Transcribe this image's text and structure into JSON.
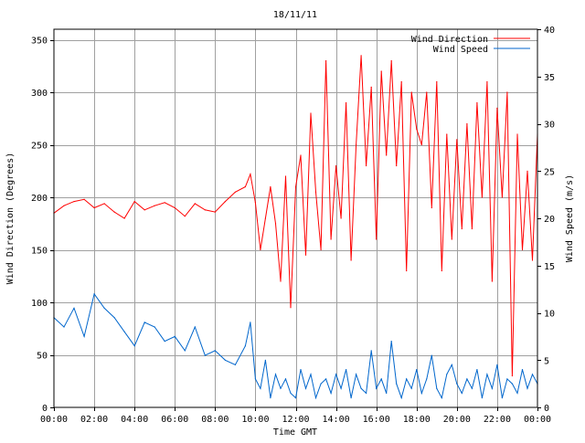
{
  "chart_data": {
    "type": "line",
    "title": "18/11/11",
    "xlabel": "Time GMT",
    "ylabel": "Wind Direction (Degrees)",
    "ylabel_right": "Wind Speed (m/s)",
    "grid": true,
    "legend_position": "top-right",
    "x_unit": "hours",
    "xlim": [
      0,
      24
    ],
    "ylim": [
      0,
      360
    ],
    "ylim_right": [
      0,
      40
    ],
    "x_ticks": [
      0,
      2,
      4,
      6,
      8,
      10,
      12,
      14,
      16,
      18,
      20,
      22,
      24
    ],
    "x_tick_labels": [
      "00:00",
      "02:00",
      "04:00",
      "06:00",
      "08:00",
      "10:00",
      "12:00",
      "14:00",
      "16:00",
      "18:00",
      "20:00",
      "22:00",
      "00:00"
    ],
    "y_ticks": [
      0,
      50,
      100,
      150,
      200,
      250,
      300,
      350
    ],
    "y_tick_labels": [
      "0",
      "50",
      "100",
      "150",
      "200",
      "250",
      "300",
      "350"
    ],
    "y_ticks_right": [
      0,
      5,
      10,
      15,
      20,
      25,
      30,
      35,
      40
    ],
    "y_tick_labels_right": [
      "0",
      "5",
      "10",
      "15",
      "20",
      "25",
      "30",
      "35",
      "40"
    ],
    "series": [
      {
        "name": "Wind Direction",
        "axis": "left",
        "color": "#ff0000",
        "x": [
          0,
          0.5,
          1,
          1.5,
          2,
          2.5,
          3,
          3.5,
          4,
          4.5,
          5,
          5.5,
          6,
          6.5,
          7,
          7.5,
          8,
          8.5,
          9,
          9.5,
          9.75,
          10,
          10.25,
          10.5,
          10.75,
          11,
          11.25,
          11.5,
          11.75,
          12,
          12.25,
          12.5,
          12.75,
          13,
          13.25,
          13.5,
          13.75,
          14,
          14.25,
          14.5,
          14.75,
          15,
          15.25,
          15.5,
          15.75,
          16,
          16.25,
          16.5,
          16.75,
          17,
          17.25,
          17.5,
          17.75,
          18,
          18.25,
          18.5,
          18.75,
          19,
          19.25,
          19.5,
          19.75,
          20,
          20.25,
          20.5,
          20.75,
          21,
          21.25,
          21.5,
          21.75,
          22,
          22.25,
          22.5,
          22.75,
          23,
          23.25,
          23.5,
          23.75,
          24
        ],
        "values": [
          185,
          192,
          196,
          198,
          190,
          194,
          186,
          180,
          196,
          188,
          192,
          195,
          190,
          182,
          194,
          188,
          186,
          196,
          205,
          210,
          222,
          195,
          150,
          180,
          210,
          175,
          120,
          220,
          95,
          210,
          240,
          145,
          280,
          205,
          150,
          330,
          160,
          230,
          180,
          290,
          140,
          250,
          335,
          230,
          305,
          160,
          320,
          240,
          330,
          230,
          310,
          130,
          300,
          265,
          250,
          300,
          190,
          310,
          130,
          260,
          160,
          255,
          170,
          270,
          170,
          290,
          200,
          310,
          120,
          285,
          200,
          300,
          30,
          260,
          150,
          225,
          140,
          260
        ]
      },
      {
        "name": "Wind Speed",
        "axis": "right",
        "color": "#0066cc",
        "x": [
          0,
          0.5,
          1,
          1.5,
          2,
          2.5,
          3,
          3.5,
          4,
          4.5,
          5,
          5.5,
          6,
          6.5,
          7,
          7.5,
          8,
          8.5,
          9,
          9.5,
          9.75,
          10,
          10.25,
          10.5,
          10.75,
          11,
          11.25,
          11.5,
          11.75,
          12,
          12.25,
          12.5,
          12.75,
          13,
          13.25,
          13.5,
          13.75,
          14,
          14.25,
          14.5,
          14.75,
          15,
          15.25,
          15.5,
          15.75,
          16,
          16.25,
          16.5,
          16.75,
          17,
          17.25,
          17.5,
          17.75,
          18,
          18.25,
          18.5,
          18.75,
          19,
          19.25,
          19.5,
          19.75,
          20,
          20.25,
          20.5,
          20.75,
          21,
          21.25,
          21.5,
          21.75,
          22,
          22.25,
          22.5,
          22.75,
          23,
          23.25,
          23.5,
          23.75,
          24
        ],
        "values": [
          9.5,
          8.5,
          10.5,
          7.5,
          12,
          10.5,
          9.5,
          8,
          6.5,
          9,
          8.5,
          7,
          7.5,
          6,
          8.5,
          5.5,
          6,
          5,
          4.5,
          6.5,
          9,
          3,
          2,
          5,
          1,
          3.5,
          2,
          3,
          1.5,
          1,
          4,
          2,
          3.5,
          1,
          2.5,
          3,
          1.5,
          3.5,
          2,
          4,
          1,
          3.5,
          2,
          1.5,
          6,
          2,
          3,
          1.5,
          7,
          2.5,
          1,
          3,
          2,
          4,
          1.5,
          3,
          5.5,
          2,
          1,
          3.5,
          4.5,
          2.5,
          1.5,
          3,
          2,
          4,
          1,
          3.5,
          2,
          4.5,
          1,
          3,
          2.5,
          1.5,
          4,
          2,
          3.5,
          2.5
        ]
      }
    ]
  }
}
